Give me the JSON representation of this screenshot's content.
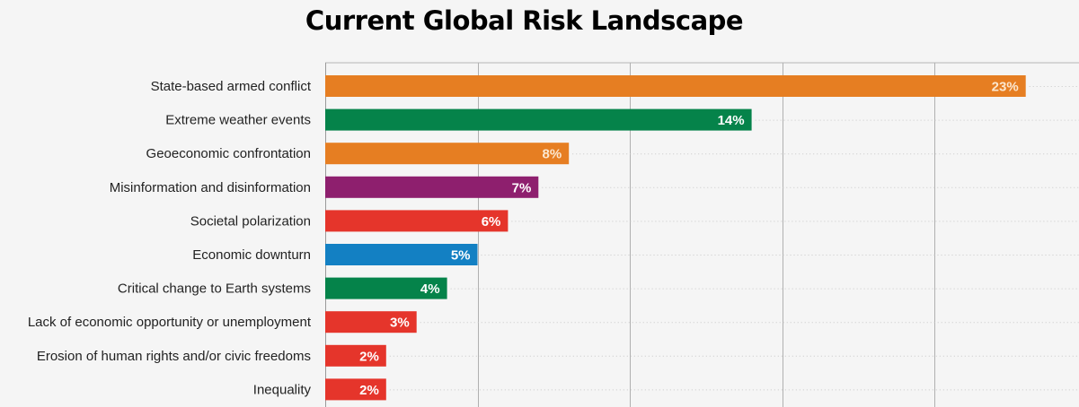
{
  "chart_data": {
    "type": "bar",
    "orientation": "horizontal",
    "title": "Current Global Risk Landscape",
    "xlabel": "",
    "ylabel": "",
    "xlim": [
      0,
      25
    ],
    "x_gridline_step": 5,
    "grid": true,
    "value_suffix": "%",
    "categories": [
      "State-based armed conflict",
      "Extreme weather events",
      "Geoeconomic confrontation",
      "Misinformation and disinformation",
      "Societal polarization",
      "Economic downturn",
      "Critical change to Earth systems",
      "Lack of economic opportunity or unemployment",
      "Erosion of human rights and/or civic freedoms",
      "Inequality"
    ],
    "values": [
      23,
      14,
      8,
      7,
      6,
      5,
      4,
      3,
      2,
      2
    ],
    "data_labels": [
      "23%",
      "14%",
      "8%",
      "7%",
      "6%",
      "5%",
      "4%",
      "3%",
      "2%",
      "2%"
    ],
    "bar_colors": [
      "#e67e22",
      "#05834a",
      "#e67e22",
      "#8e1f6e",
      "#e5352b",
      "#1380c3",
      "#05834a",
      "#e5352b",
      "#e5352b",
      "#e5352b"
    ]
  }
}
